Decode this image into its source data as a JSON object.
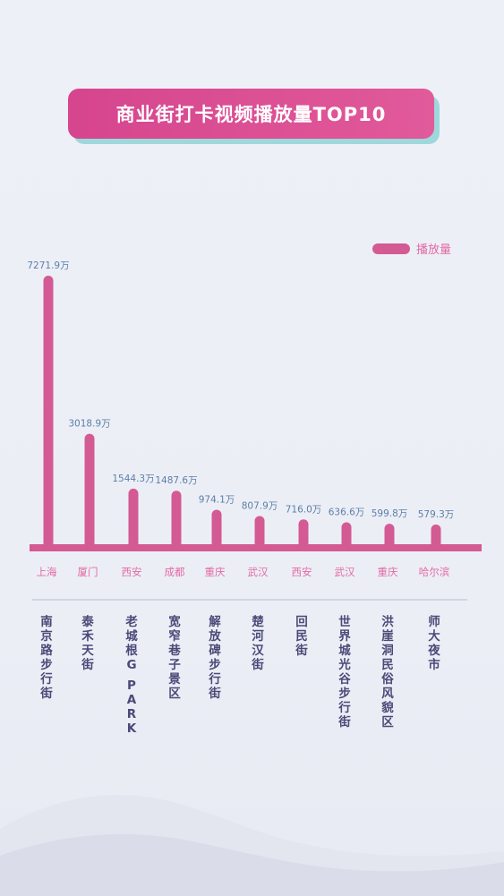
{
  "title": "商业街打卡视频播放量TOP10",
  "colors": {
    "bar": "#d45a93",
    "value_label": "#5b7fa6",
    "city_label": "#e26aa3",
    "street_label": "#4a4a78",
    "divider": "#b9bccb"
  },
  "chart_data": {
    "type": "bar",
    "title": "商业街打卡视频播放量TOP10",
    "legend": {
      "label": "播放量",
      "placement": "top-right"
    },
    "unit": "万",
    "categories": [
      "南京路步行街",
      "泰禾天街",
      "老城根G PARK",
      "宽窄巷子景区",
      "解放碑步行街",
      "楚河汉街",
      "回民街",
      "世界城光谷步行街",
      "洪崖洞民俗风貌区",
      "师大夜市"
    ],
    "cities": [
      "上海",
      "厦门",
      "西安",
      "成都",
      "重庆",
      "武汉",
      "西安",
      "武汉",
      "重庆",
      "哈尔滨"
    ],
    "series": [
      {
        "name": "播放量",
        "values": [
          7271.9,
          3018.9,
          1544.3,
          1487.6,
          974.1,
          807.9,
          716.0,
          636.6,
          599.8,
          579.3
        ],
        "labels": [
          "7271.9万",
          "3018.9万",
          "1544.3万",
          "1487.6万",
          "974.1万",
          "807.9万",
          "716.0万",
          "636.6万",
          "599.8万",
          "579.3万"
        ]
      }
    ],
    "grid": false
  }
}
